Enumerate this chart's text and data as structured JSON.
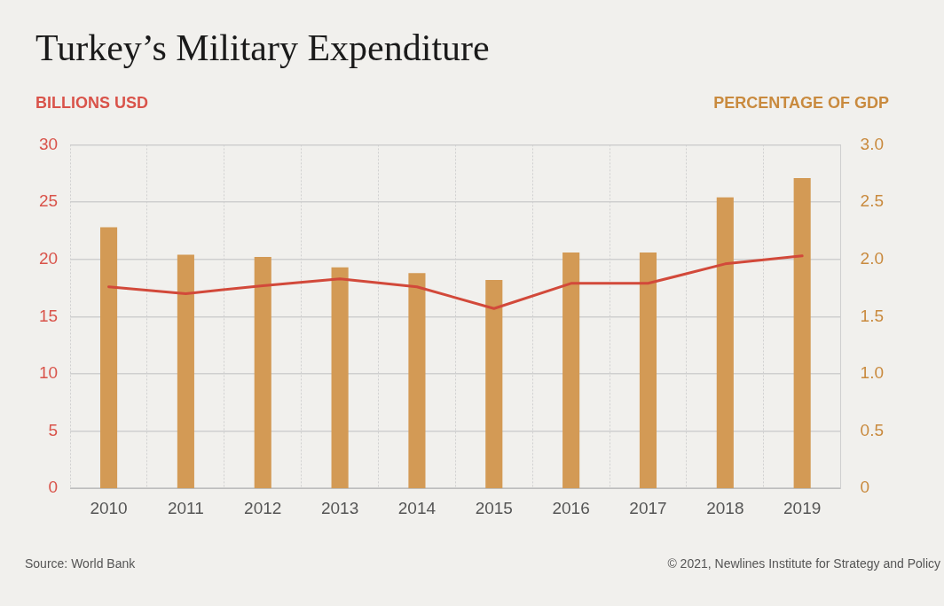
{
  "chart_data": {
    "type": "bar",
    "title": "Turkey’s Military Expenditure",
    "ylabel": "BILLIONS USD",
    "y2label": "PERCENTAGE OF GDP",
    "categories": [
      "2010",
      "2011",
      "2012",
      "2013",
      "2014",
      "2015",
      "2016",
      "2017",
      "2018",
      "2019"
    ],
    "series": [
      {
        "axis": "y2",
        "color": "#d39a55",
        "values": [
          2.28,
          2.04,
          2.02,
          1.93,
          1.88,
          1.82,
          2.06,
          2.06,
          2.54,
          2.71
        ]
      },
      {
        "type": "line",
        "axis": "y",
        "color": "#d2493a",
        "values": [
          17.6,
          17.0,
          17.7,
          18.3,
          17.6,
          15.7,
          17.9,
          17.9,
          19.6,
          20.3
        ]
      }
    ],
    "ylim": [
      0,
      30
    ],
    "yticks": [
      0,
      5,
      10,
      15,
      20,
      25,
      30
    ],
    "y2lim": [
      0,
      3
    ],
    "y2ticks": [
      0,
      {
        "value": 0.5,
        "label": "0.5"
      },
      {
        "value": 1,
        "label": "1.0"
      },
      {
        "value": 1.5,
        "label": "1.5"
      },
      {
        "value": 2,
        "label": "2.0"
      },
      {
        "value": 2.5,
        "label": "2.5"
      },
      {
        "value": 3,
        "label": "3.0"
      }
    ],
    "grid": true,
    "legend": false,
    "marker": "none",
    "line_style": "solid",
    "annotations": [
      "Source: World Bank",
      "© 2021, Newlines Institute for Strategy and Policy"
    ]
  }
}
